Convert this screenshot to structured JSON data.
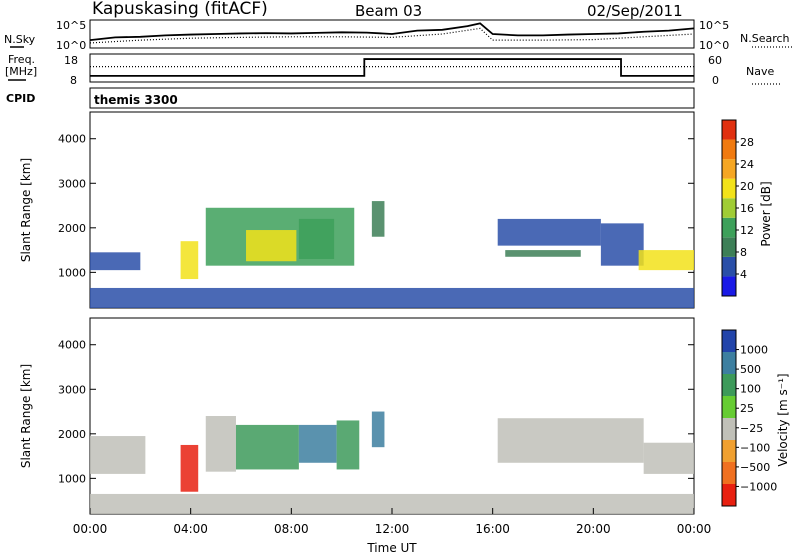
{
  "header": {
    "station": "Kapuskasing (fitACF)",
    "beam": "Beam 03",
    "date": "02/Sep/2011",
    "nsky_label": "N.Sky",
    "nsearch_label": "N.Search",
    "freq_label_1": "Freq.",
    "freq_label_2": "[MHz]",
    "nave_label": "Nave",
    "cpid_label": "CPID",
    "cpid_value": "themis 3300"
  },
  "chart_data": [
    {
      "type": "line",
      "name": "noise",
      "ylim_labels": [
        "10^0",
        "10^5"
      ],
      "left_ticks": [
        "10^5",
        "10^0"
      ],
      "right_ticks": [
        "10^5",
        "10^0"
      ],
      "xlim": [
        0,
        24
      ],
      "series": [
        {
          "style": "solid",
          "x": [
            0,
            1,
            2,
            3,
            4,
            5,
            6,
            7,
            8,
            9,
            10,
            11,
            12,
            13,
            14,
            15,
            15.5,
            16,
            17,
            18,
            19,
            20,
            21,
            22,
            23,
            24
          ],
          "y": [
            0.72,
            0.62,
            0.6,
            0.55,
            0.52,
            0.5,
            0.48,
            0.47,
            0.48,
            0.46,
            0.44,
            0.45,
            0.5,
            0.38,
            0.35,
            0.22,
            0.12,
            0.5,
            0.55,
            0.55,
            0.52,
            0.5,
            0.48,
            0.42,
            0.38,
            0.3
          ]
        },
        {
          "style": "dotted",
          "x": [
            0,
            2,
            4,
            6,
            8,
            10,
            12,
            14,
            15.5,
            16,
            18,
            20,
            22,
            24
          ],
          "y": [
            0.82,
            0.72,
            0.65,
            0.62,
            0.6,
            0.6,
            0.62,
            0.5,
            0.3,
            0.72,
            0.72,
            0.7,
            0.6,
            0.5
          ]
        }
      ]
    },
    {
      "type": "line",
      "name": "frequency-nave",
      "left_ticks": [
        "18",
        "8"
      ],
      "right_ticks": [
        "60",
        "0"
      ],
      "xlim": [
        0,
        24
      ],
      "series": [
        {
          "name": "Freq.",
          "style": "solid",
          "x": [
            0,
            10.9,
            10.9,
            21.1,
            21.1,
            24
          ],
          "y": [
            10.2,
            10.2,
            16.2,
            16.2,
            10.2,
            10.2
          ]
        },
        {
          "name": "Nave",
          "style": "dotted",
          "x": [
            0,
            24
          ],
          "y": [
            13.5,
            13.5
          ]
        }
      ]
    },
    {
      "type": "heatmap",
      "name": "power",
      "ylabel": "Slant Range [km]",
      "yticks": [
        1000,
        2000,
        3000,
        4000
      ],
      "ylim": [
        200,
        4600
      ],
      "xlim": [
        0,
        24
      ],
      "colorbar": {
        "label": "Power [dB]",
        "ticks": [
          "4",
          "8",
          "12",
          "16",
          "20",
          "24",
          "28"
        ]
      },
      "regions": [
        {
          "x": [
            0.0,
            2.0
          ],
          "y": [
            1050,
            1450
          ],
          "level": 4
        },
        {
          "x": [
            3.6,
            4.3
          ],
          "y": [
            850,
            1700
          ],
          "level": 20
        },
        {
          "x": [
            4.6,
            10.5
          ],
          "y": [
            1150,
            2450
          ],
          "level": 14
        },
        {
          "x": [
            6.2,
            8.2
          ],
          "y": [
            1250,
            1950
          ],
          "level": 22
        },
        {
          "x": [
            8.3,
            9.7
          ],
          "y": [
            1300,
            2200
          ],
          "level": 13
        },
        {
          "x": [
            11.2,
            11.7
          ],
          "y": [
            1800,
            2600
          ],
          "level": 8
        },
        {
          "x": [
            16.2,
            20.3
          ],
          "y": [
            1600,
            2200
          ],
          "level": 6
        },
        {
          "x": [
            16.5,
            19.5
          ],
          "y": [
            1350,
            1500
          ],
          "level": 10
        },
        {
          "x": [
            20.3,
            22.0
          ],
          "y": [
            1150,
            2100
          ],
          "level": 5
        },
        {
          "x": [
            21.8,
            24.0
          ],
          "y": [
            1050,
            1500
          ],
          "level": 21
        },
        {
          "x": [
            0.0,
            24.0
          ],
          "y": [
            200,
            650
          ],
          "level": 5
        }
      ]
    },
    {
      "type": "heatmap",
      "name": "velocity",
      "ylabel": "Slant Range [km]",
      "yticks": [
        1000,
        2000,
        3000,
        4000
      ],
      "ylim": [
        200,
        4600
      ],
      "xlim": [
        0,
        24
      ],
      "xticks": [
        "00:00",
        "04:00",
        "08:00",
        "12:00",
        "16:00",
        "20:00",
        "00:00"
      ],
      "xlabel": "Time UT",
      "colorbar": {
        "label": "Velocity [m s⁻¹]",
        "ticks": [
          "1000",
          "500",
          "100",
          "25",
          "−25",
          "−100",
          "−500",
          "−1000"
        ]
      },
      "regions": [
        {
          "x": [
            0.0,
            2.2
          ],
          "y": [
            1100,
            1950
          ],
          "level": 0
        },
        {
          "x": [
            3.6,
            4.3
          ],
          "y": [
            700,
            1750
          ],
          "level": -550
        },
        {
          "x": [
            4.6,
            5.8
          ],
          "y": [
            1150,
            2400
          ],
          "level": 0
        },
        {
          "x": [
            5.8,
            8.3
          ],
          "y": [
            1200,
            2200
          ],
          "level": 90
        },
        {
          "x": [
            8.3,
            9.8
          ],
          "y": [
            1350,
            2200
          ],
          "level": 300
        },
        {
          "x": [
            9.8,
            10.7
          ],
          "y": [
            1200,
            2300
          ],
          "level": 80
        },
        {
          "x": [
            11.2,
            11.7
          ],
          "y": [
            1700,
            2500
          ],
          "level": 300
        },
        {
          "x": [
            16.2,
            22.0
          ],
          "y": [
            1350,
            2350
          ],
          "level": 0
        },
        {
          "x": [
            22.0,
            24.0
          ],
          "y": [
            1100,
            1800
          ],
          "level": 0
        },
        {
          "x": [
            0.0,
            24.0
          ],
          "y": [
            200,
            650
          ],
          "level": 0
        }
      ]
    }
  ],
  "colors": {
    "power_scale": [
      "#1a1ae6",
      "#2a4fa8",
      "#3d7f57",
      "#3da05a",
      "#a0cc35",
      "#f2e21a",
      "#f5a623",
      "#f07a10",
      "#e03010"
    ],
    "velocity_scale": [
      "#2244aa",
      "#3d7fa0",
      "#3d9a5a",
      "#66cc33",
      "#c0c0b8",
      "#f0a030",
      "#f07020",
      "#e82010"
    ]
  }
}
